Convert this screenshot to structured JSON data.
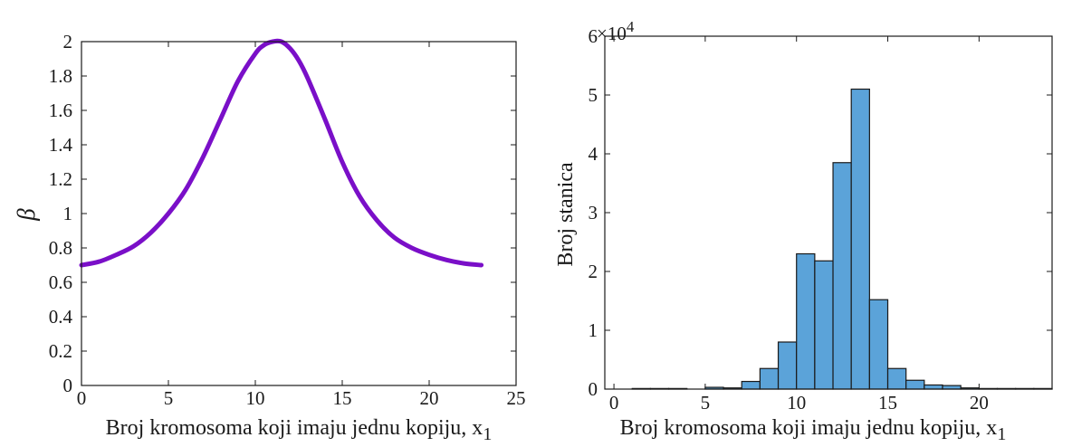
{
  "chart_data": [
    {
      "type": "line",
      "title": "",
      "xlabel": "Broj kromosoma koji imaju jednu kopiju, x",
      "xlabel_sub": "1",
      "ylabel": "β",
      "xlim": [
        0,
        25
      ],
      "ylim": [
        0,
        2
      ],
      "xticks": [
        "0",
        "5",
        "10",
        "15",
        "20",
        "25"
      ],
      "yticks": [
        "0",
        "0.2",
        "0.4",
        "0.6",
        "0.8",
        "1",
        "1.2",
        "1.4",
        "1.6",
        "1.8",
        "2"
      ],
      "series": [
        {
          "color": "#7a0fc8",
          "x": [
            0,
            1,
            2,
            3,
            4,
            5,
            6,
            7,
            8,
            9,
            10,
            10.5,
            11,
            11.5,
            12,
            12.5,
            13,
            14,
            15,
            16,
            17,
            18,
            19,
            20,
            21,
            22,
            23
          ],
          "y": [
            0.7,
            0.72,
            0.76,
            0.81,
            0.89,
            1.0,
            1.14,
            1.33,
            1.55,
            1.77,
            1.93,
            1.98,
            2.0,
            2.0,
            1.96,
            1.89,
            1.79,
            1.55,
            1.3,
            1.1,
            0.96,
            0.86,
            0.8,
            0.76,
            0.73,
            0.71,
            0.7
          ]
        }
      ]
    },
    {
      "type": "bar",
      "title": "",
      "xlabel": "Broj kromosoma koji imaju jednu kopiju, x",
      "xlabel_sub": "1",
      "ylabel": "Broj stanica",
      "y_multiplier": "×10",
      "y_multiplier_exp": "4",
      "xlim": [
        -0.5,
        24
      ],
      "ylim": [
        0,
        6
      ],
      "xticks": [
        "0",
        "5",
        "10",
        "15",
        "20"
      ],
      "yticks": [
        "0",
        "1",
        "2",
        "3",
        "4",
        "5",
        "6"
      ],
      "bar_color": "#5ba3d9",
      "categories": [
        0,
        1,
        2,
        3,
        4,
        5,
        6,
        7,
        8,
        9,
        10,
        11,
        12,
        13,
        14,
        15,
        16,
        17,
        18,
        19,
        20,
        21,
        22,
        23
      ],
      "values": [
        0,
        0.01,
        0.01,
        0.01,
        0,
        0.03,
        0.02,
        0.13,
        0.35,
        0.8,
        2.3,
        2.18,
        3.85,
        5.1,
        1.52,
        0.35,
        0.15,
        0.07,
        0.06,
        0.02,
        0.01,
        0.01,
        0.01,
        0.01
      ]
    }
  ]
}
